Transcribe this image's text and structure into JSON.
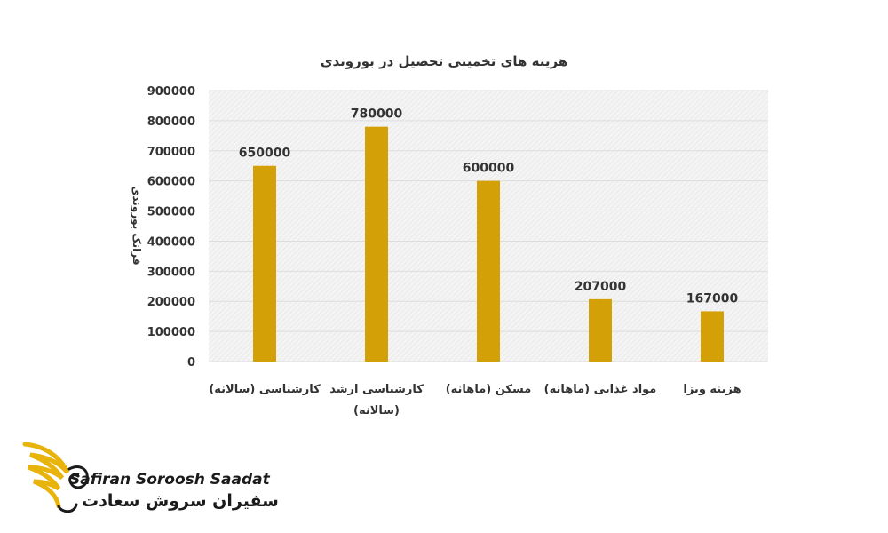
{
  "chart_data": {
    "type": "bar",
    "title": "هزینه های تخمینی تحصیل در بوروندی",
    "ylabel": "فرانک بوروندی",
    "xlabel": "",
    "categories": [
      [
        "کارشناسی (سالانه)"
      ],
      [
        "کارشناسی ارشد",
        "(سالانه)"
      ],
      [
        "مسکن (ماهانه)"
      ],
      [
        "مواد غذایی (ماهانه)"
      ],
      [
        "هزینه ویزا"
      ]
    ],
    "values": [
      650000,
      780000,
      600000,
      207000,
      167000
    ],
    "ylim": [
      0,
      900000
    ],
    "yticks": [
      "0",
      "100000",
      "200000",
      "300000",
      "400000",
      "500000",
      "600000",
      "700000",
      "800000",
      "900000"
    ],
    "data_labels": [
      "650000",
      "780000",
      "600000",
      "207000",
      "167000"
    ],
    "grid": true,
    "legend": "none",
    "colors": {
      "bar": "#D4A007",
      "grid": "#dddddd",
      "plot_bg": "#f2f2f2"
    }
  },
  "logo": {
    "brand_en": "Safiran Soroosh Saadat",
    "brand_fa": "سفیران سروش سعادت",
    "colors": {
      "wing": "#E8B30A",
      "text": "#1b1b1b"
    }
  }
}
